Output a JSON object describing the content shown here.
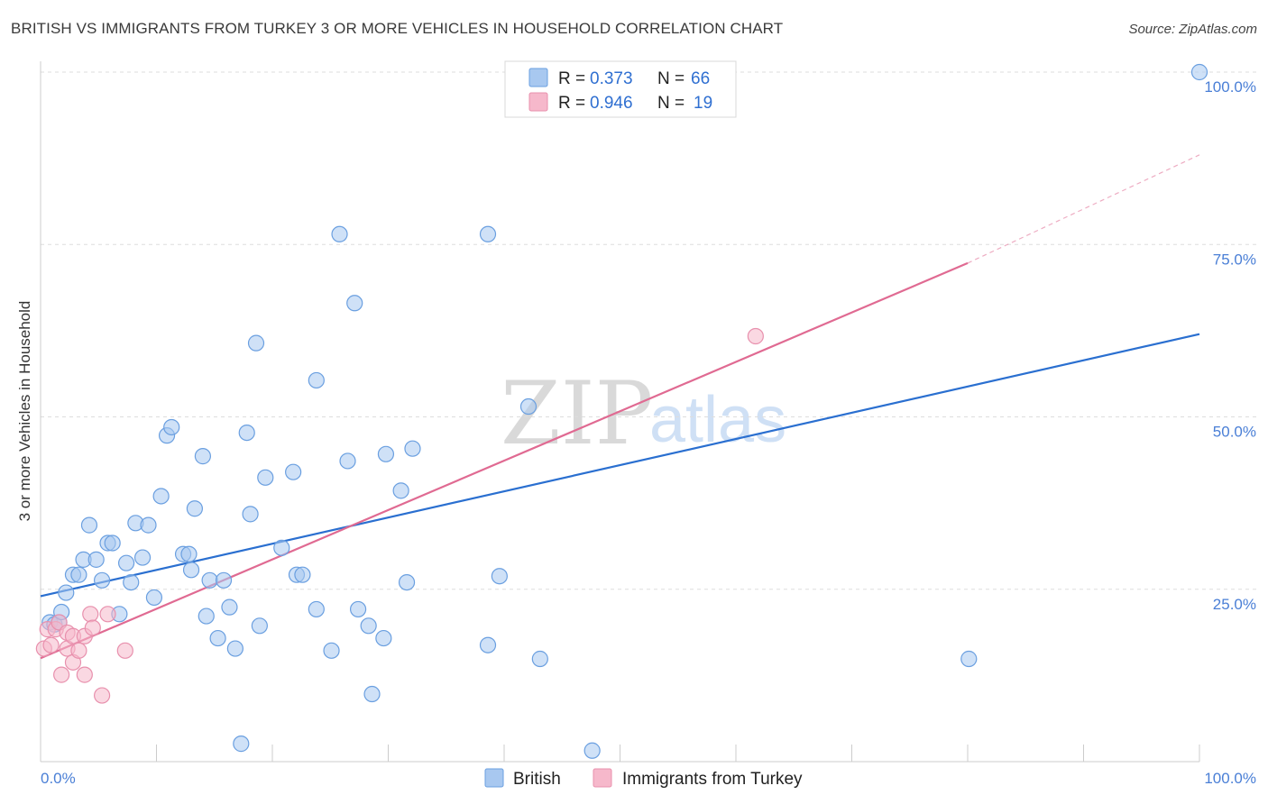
{
  "header": {
    "title": "BRITISH VS IMMIGRANTS FROM TURKEY 3 OR MORE VEHICLES IN HOUSEHOLD CORRELATION CHART",
    "source": "Source: ZipAtlas.com"
  },
  "watermark": {
    "zip": "ZIP",
    "atlas": "atlas"
  },
  "legend": {
    "rows": [
      {
        "r_label": "R =",
        "r_value": "0.373",
        "n_label": "N =",
        "n_value": "66",
        "color": "#a8c8f0"
      },
      {
        "r_label": "R =",
        "r_value": "0.946",
        "n_label": "N =",
        "n_value": "19",
        "color": "#f6b8cb"
      }
    ]
  },
  "bottom_legend": {
    "british": "British",
    "turkey": "Immigrants from Turkey"
  },
  "chart_data": {
    "type": "scatter",
    "title": "BRITISH VS IMMIGRANTS FROM TURKEY 3 OR MORE VEHICLES IN HOUSEHOLD CORRELATION CHART",
    "xlabel": "",
    "ylabel": "3 or more Vehicles in Household",
    "xlim": [
      0,
      100
    ],
    "ylim": [
      0,
      100
    ],
    "x_tick_labels": [
      "0.0%",
      "100.0%"
    ],
    "y_tick_labels": [
      "25.0%",
      "50.0%",
      "75.0%",
      "100.0%"
    ],
    "y_ticks": [
      25,
      50,
      75,
      100
    ],
    "grid": true,
    "series": [
      {
        "name": "British",
        "color": "#a8c8f0",
        "stroke": "#6a9fe0",
        "line_color": "#2a6fd0",
        "trend": {
          "x0": 0,
          "y0": 24.0,
          "x1": 100,
          "y1": 62.0
        },
        "points": [
          [
            0.8,
            20.2
          ],
          [
            1.2,
            19.9
          ],
          [
            1.6,
            20.2
          ],
          [
            1.8,
            21.7
          ],
          [
            2.2,
            24.5
          ],
          [
            2.8,
            27.1
          ],
          [
            3.3,
            27.1
          ],
          [
            3.7,
            29.3
          ],
          [
            4.2,
            34.3
          ],
          [
            4.8,
            29.3
          ],
          [
            5.3,
            26.3
          ],
          [
            5.8,
            31.7
          ],
          [
            6.2,
            31.7
          ],
          [
            6.8,
            21.4
          ],
          [
            7.4,
            28.8
          ],
          [
            7.8,
            26.0
          ],
          [
            8.2,
            34.6
          ],
          [
            8.8,
            29.6
          ],
          [
            9.3,
            34.3
          ],
          [
            9.8,
            23.8
          ],
          [
            10.4,
            38.5
          ],
          [
            10.9,
            47.3
          ],
          [
            11.3,
            48.5
          ],
          [
            12.3,
            30.1
          ],
          [
            12.8,
            30.1
          ],
          [
            13.0,
            27.8
          ],
          [
            13.3,
            36.7
          ],
          [
            14.0,
            44.3
          ],
          [
            14.3,
            21.1
          ],
          [
            14.6,
            26.3
          ],
          [
            15.3,
            17.9
          ],
          [
            15.8,
            26.3
          ],
          [
            16.3,
            22.4
          ],
          [
            16.8,
            16.4
          ],
          [
            17.3,
            2.6
          ],
          [
            17.8,
            47.7
          ],
          [
            18.1,
            35.9
          ],
          [
            18.6,
            60.7
          ],
          [
            18.9,
            19.7
          ],
          [
            19.4,
            41.2
          ],
          [
            20.8,
            31.0
          ],
          [
            21.8,
            42.0
          ],
          [
            22.1,
            27.1
          ],
          [
            22.6,
            27.1
          ],
          [
            23.8,
            55.3
          ],
          [
            23.8,
            22.1
          ],
          [
            25.1,
            16.1
          ],
          [
            25.8,
            76.5
          ],
          [
            26.5,
            43.6
          ],
          [
            27.1,
            66.5
          ],
          [
            27.4,
            22.1
          ],
          [
            28.3,
            19.7
          ],
          [
            28.6,
            9.8
          ],
          [
            29.6,
            17.9
          ],
          [
            29.8,
            44.6
          ],
          [
            31.1,
            39.3
          ],
          [
            31.6,
            26.0
          ],
          [
            32.1,
            45.4
          ],
          [
            38.6,
            76.5
          ],
          [
            38.6,
            16.9
          ],
          [
            39.6,
            26.9
          ],
          [
            42.1,
            51.5
          ],
          [
            43.1,
            14.9
          ],
          [
            47.6,
            1.6
          ],
          [
            80.1,
            14.9
          ],
          [
            100.0,
            100.0
          ]
        ]
      },
      {
        "name": "Immigrants from Turkey",
        "color": "#f6b8cb",
        "stroke": "#e890ad",
        "line_color": "#e06a92",
        "trend": {
          "x0": 0,
          "y0": 15.0,
          "x1": 80,
          "y1": 72.3
        },
        "trend_dashed": {
          "x0": 80,
          "y0": 72.3,
          "x1": 100,
          "y1": 88.0
        },
        "points": [
          [
            0.3,
            16.4
          ],
          [
            0.6,
            19.2
          ],
          [
            0.9,
            16.9
          ],
          [
            1.3,
            19.2
          ],
          [
            1.6,
            20.2
          ],
          [
            1.8,
            12.6
          ],
          [
            2.3,
            18.7
          ],
          [
            2.3,
            16.4
          ],
          [
            2.8,
            18.2
          ],
          [
            2.8,
            14.4
          ],
          [
            3.3,
            16.1
          ],
          [
            3.8,
            18.2
          ],
          [
            3.8,
            12.6
          ],
          [
            4.3,
            21.4
          ],
          [
            4.5,
            19.4
          ],
          [
            5.3,
            9.6
          ],
          [
            5.8,
            21.4
          ],
          [
            7.3,
            16.1
          ],
          [
            61.7,
            61.7
          ]
        ]
      }
    ]
  }
}
